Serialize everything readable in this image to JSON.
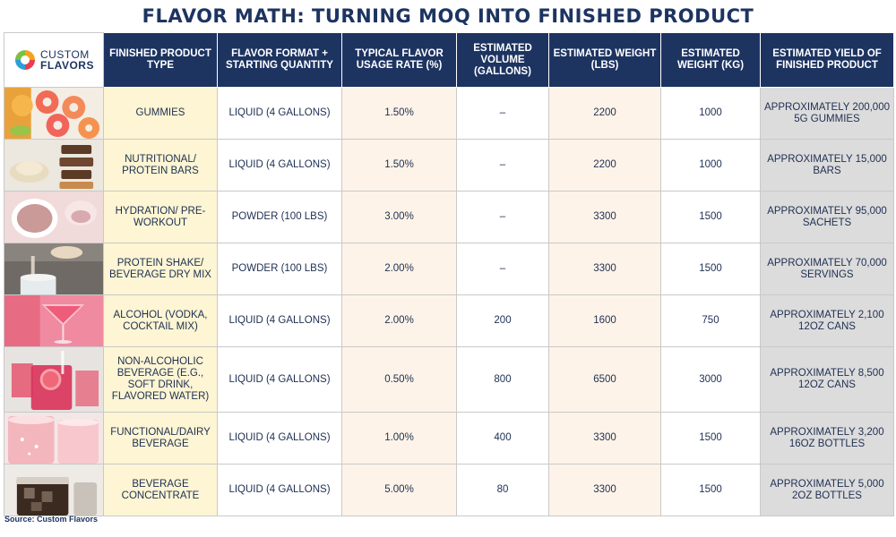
{
  "title": "FLAVOR MATH: TURNING MOQ INTO FINISHED PRODUCT",
  "logo": {
    "line1": "CUSTOM",
    "line2": "FLAVORS"
  },
  "headers": [
    "FINISHED PRODUCT TYPE",
    "FLAVOR FORMAT + STARTING QUANTITY",
    "TYPICAL FLAVOR USAGE RATE (%)",
    "ESTIMATED VOLUME (GALLONS)",
    "ESTIMATED WEIGHT (LBS)",
    "ESTIMATED WEIGHT (KG)",
    "ESTIMATED YIELD OF FINISHED PRODUCT"
  ],
  "rows": [
    {
      "product": "GUMMIES",
      "format": "LIQUID (4 GALLONS)",
      "rate": "1.50%",
      "volume": "–",
      "lbs": "2200",
      "kg": "1000",
      "yield": "APPROXIMATELY 200,000 5G GUMMIES"
    },
    {
      "product": "NUTRITIONAL/ PROTEIN BARS",
      "format": "LIQUID (4 GALLONS)",
      "rate": "1.50%",
      "volume": "–",
      "lbs": "2200",
      "kg": "1000",
      "yield": "APPROXIMATELY 15,000 BARS"
    },
    {
      "product": "HYDRATION/ PRE-WORKOUT",
      "format": "POWDER (100 LBS)",
      "rate": "3.00%",
      "volume": "–",
      "lbs": "3300",
      "kg": "1500",
      "yield": "APPROXIMATELY 95,000 SACHETS"
    },
    {
      "product": "PROTEIN SHAKE/ BEVERAGE DRY MIX",
      "format": "POWDER (100 LBS)",
      "rate": "2.00%",
      "volume": "–",
      "lbs": "3300",
      "kg": "1500",
      "yield": "APPROXIMATELY 70,000 SERVINGS"
    },
    {
      "product": "ALCOHOL (VODKA, COCKTAIL MIX)",
      "format": "LIQUID (4 GALLONS)",
      "rate": "2.00%",
      "volume": "200",
      "lbs": "1600",
      "kg": "750",
      "yield": "APPROXIMATELY 2,100 12OZ CANS"
    },
    {
      "product": "NON-ALCOHOLIC BEVERAGE (E.G., SOFT DRINK, FLAVORED WATER)",
      "format": "LIQUID (4 GALLONS)",
      "rate": "0.50%",
      "volume": "800",
      "lbs": "6500",
      "kg": "3000",
      "yield": "APPROXIMATELY 8,500 12OZ CANS"
    },
    {
      "product": "FUNCTIONAL/DAIRY BEVERAGE",
      "format": "LIQUID (4 GALLONS)",
      "rate": "1.00%",
      "volume": "400",
      "lbs": "3300",
      "kg": "1500",
      "yield": "APPROXIMATELY 3,200 16OZ BOTTLES"
    },
    {
      "product": "BEVERAGE CONCENTRATE",
      "format": "LIQUID (4 GALLONS)",
      "rate": "5.00%",
      "volume": "80",
      "lbs": "3300",
      "kg": "1500",
      "yield": "APPROXIMATELY 5,000 2OZ BOTTLES"
    }
  ],
  "row_images": [
    "gummies-photo",
    "protein-bars-photo",
    "hydration-powder-photo",
    "protein-shake-photo",
    "cocktail-photo",
    "soft-drink-photo",
    "dairy-beverage-photo",
    "cold-brew-concentrate-photo"
  ],
  "source": "Source: Custom Flavors",
  "colors": {
    "header_bg": "#1d3461",
    "product_col": "#fdf5d3",
    "alt_col": "#fdf3e8",
    "yield_col": "#dcdcdc"
  }
}
